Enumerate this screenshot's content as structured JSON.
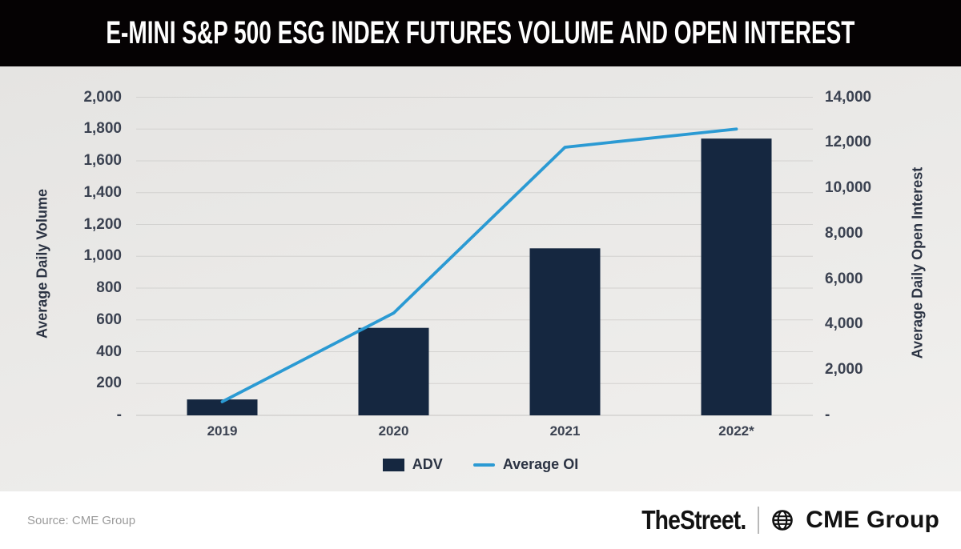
{
  "header": {
    "title": "E-MINI S&P 500 ESG INDEX FUTURES VOLUME AND OPEN INTEREST"
  },
  "chart_data": {
    "type": "combo-bar-line",
    "title": "E-MINI S&P 500 ESG INDEX FUTURES VOLUME AND OPEN INTEREST",
    "categories": [
      "2019",
      "2020",
      "2021",
      "2022*"
    ],
    "series": [
      {
        "name": "ADV",
        "type": "bar",
        "axis": "left",
        "values": [
          100,
          550,
          1050,
          1740
        ]
      },
      {
        "name": "Average OI",
        "type": "line",
        "axis": "right",
        "values": [
          600,
          4500,
          11800,
          12600
        ]
      }
    ],
    "left_axis": {
      "label": "Average Daily Volume",
      "range": [
        0,
        2000
      ],
      "tick_step": 200,
      "ticks": [
        "-",
        "200",
        "400",
        "600",
        "800",
        "1,000",
        "1,200",
        "1,400",
        "1,600",
        "1,800",
        "2,000"
      ]
    },
    "right_axis": {
      "label": "Average Daily Open Interest",
      "range": [
        0,
        14000
      ],
      "tick_step": 2000,
      "ticks": [
        "-",
        "2,000",
        "4,000",
        "6,000",
        "8,000",
        "10,000",
        "12,000",
        "14,000"
      ]
    },
    "grid": true,
    "legend_position": "bottom-center"
  },
  "legend": {
    "items": [
      {
        "label": "ADV",
        "swatch": "square"
      },
      {
        "label": "Average OI",
        "swatch": "line"
      }
    ]
  },
  "footer": {
    "source": "Source: CME Group",
    "brand_primary": "TheStreet.",
    "brand_secondary": "CME Group"
  },
  "colors": {
    "header_bg": "#050203",
    "title_text": "#ffffff",
    "chart_bg_top": "#e5e4e2",
    "chart_bg_bottom": "#f1f0ee",
    "gridline": "#d3d2d0",
    "baseline": "#c6c5c3",
    "bar": "#152740",
    "line": "#2b9ad3",
    "tick_text": "#3b4251",
    "axis_title_text": "#2b3343",
    "x_label_text": "#3b4251",
    "legend_text": "#2b3343",
    "source_text": "#9b9b9b",
    "brand_text": "#121212",
    "separator": "#b9b9b9"
  }
}
